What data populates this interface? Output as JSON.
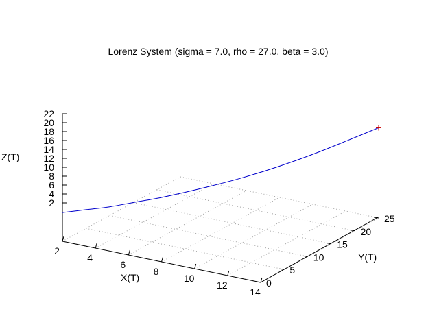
{
  "chart_data": {
    "type": "line",
    "title": "Lorenz System (sigma = 7.0, rho = 27.0, beta = 3.0)",
    "xlabel": "X(T)",
    "ylabel": "Y(T)",
    "zlabel": "Z(T)",
    "xlim": [
      2,
      14
    ],
    "ylim": [
      0,
      25
    ],
    "zlim": [
      0,
      22
    ],
    "x_ticks": [
      "2",
      "4",
      "6",
      "8",
      "10",
      "12",
      "14"
    ],
    "y_ticks": [
      "0",
      "5",
      "10",
      "15",
      "20",
      "25"
    ],
    "z_ticks": [
      "2",
      "4",
      "6",
      "8",
      "10",
      "12",
      "14",
      "16",
      "18",
      "20",
      "22"
    ],
    "grid": true,
    "series": [
      {
        "color": "#0000cc",
        "marker_color": "#cc0000",
        "points": [
          {
            "x": 2.0,
            "y": 0.0,
            "z": 7.0
          },
          {
            "x": 3.0,
            "y": 1.5,
            "z": 7.6
          },
          {
            "x": 4.0,
            "y": 3.0,
            "z": 8.2
          },
          {
            "x": 5.0,
            "y": 4.8,
            "z": 9.0
          },
          {
            "x": 6.0,
            "y": 6.6,
            "z": 9.8
          },
          {
            "x": 7.0,
            "y": 8.5,
            "z": 10.8
          },
          {
            "x": 8.0,
            "y": 10.5,
            "z": 11.9
          },
          {
            "x": 9.0,
            "y": 12.6,
            "z": 13.1
          },
          {
            "x": 10.0,
            "y": 14.8,
            "z": 14.5
          },
          {
            "x": 11.0,
            "y": 17.2,
            "z": 16.1
          },
          {
            "x": 12.0,
            "y": 19.8,
            "z": 17.9
          },
          {
            "x": 13.0,
            "y": 22.6,
            "z": 19.9
          },
          {
            "x": 14.0,
            "y": 25.0,
            "z": 22.0
          }
        ]
      }
    ]
  }
}
